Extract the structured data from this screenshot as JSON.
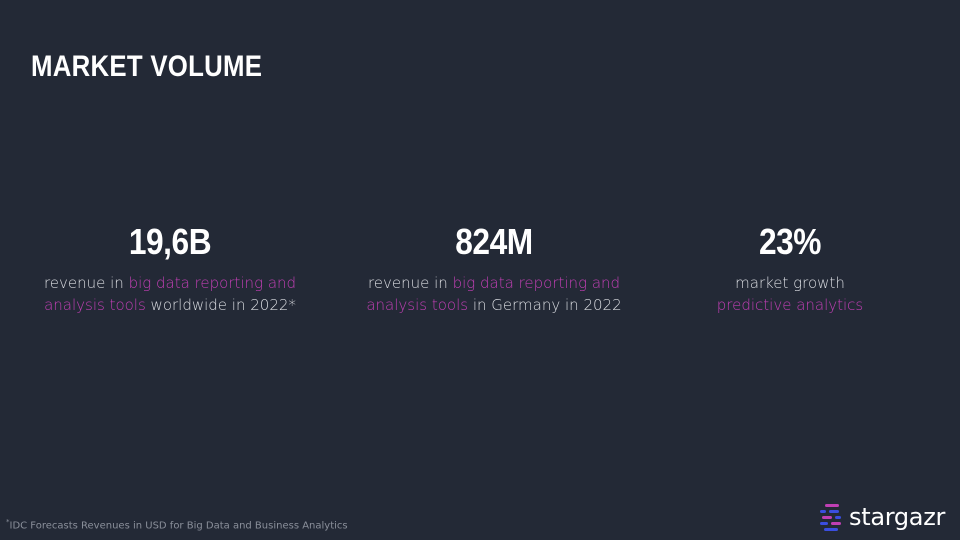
{
  "slide": {
    "title": "MARKET VOLUME"
  },
  "stats": [
    {
      "value": "19,6B",
      "line1_pre": "revenue in ",
      "line1_hl": "big data reporting and",
      "line2_hl": "analysis tools",
      "line2_post": " worldwide in 2022*"
    },
    {
      "value": "824M",
      "line1_pre": "revenue in ",
      "line1_hl": "big data reporting and",
      "line2_hl": "analysis tools",
      "line2_post": " in Germany in 2022"
    },
    {
      "value": "23%",
      "line1": "market growth",
      "line2_hl": "predictive analytics"
    }
  ],
  "footnote": {
    "marker": "*",
    "text": "IDC Forecasts Revenues in USD for Big Data and Business Analytics"
  },
  "logo": {
    "text": "stargazr",
    "icon": "stargazr-logo-icon"
  },
  "colors": {
    "background": "#232936",
    "accent": "#c03fb4",
    "text": "#ffffff",
    "logo_blue": "#3b4ee0",
    "logo_magenta": "#c03fb4"
  }
}
